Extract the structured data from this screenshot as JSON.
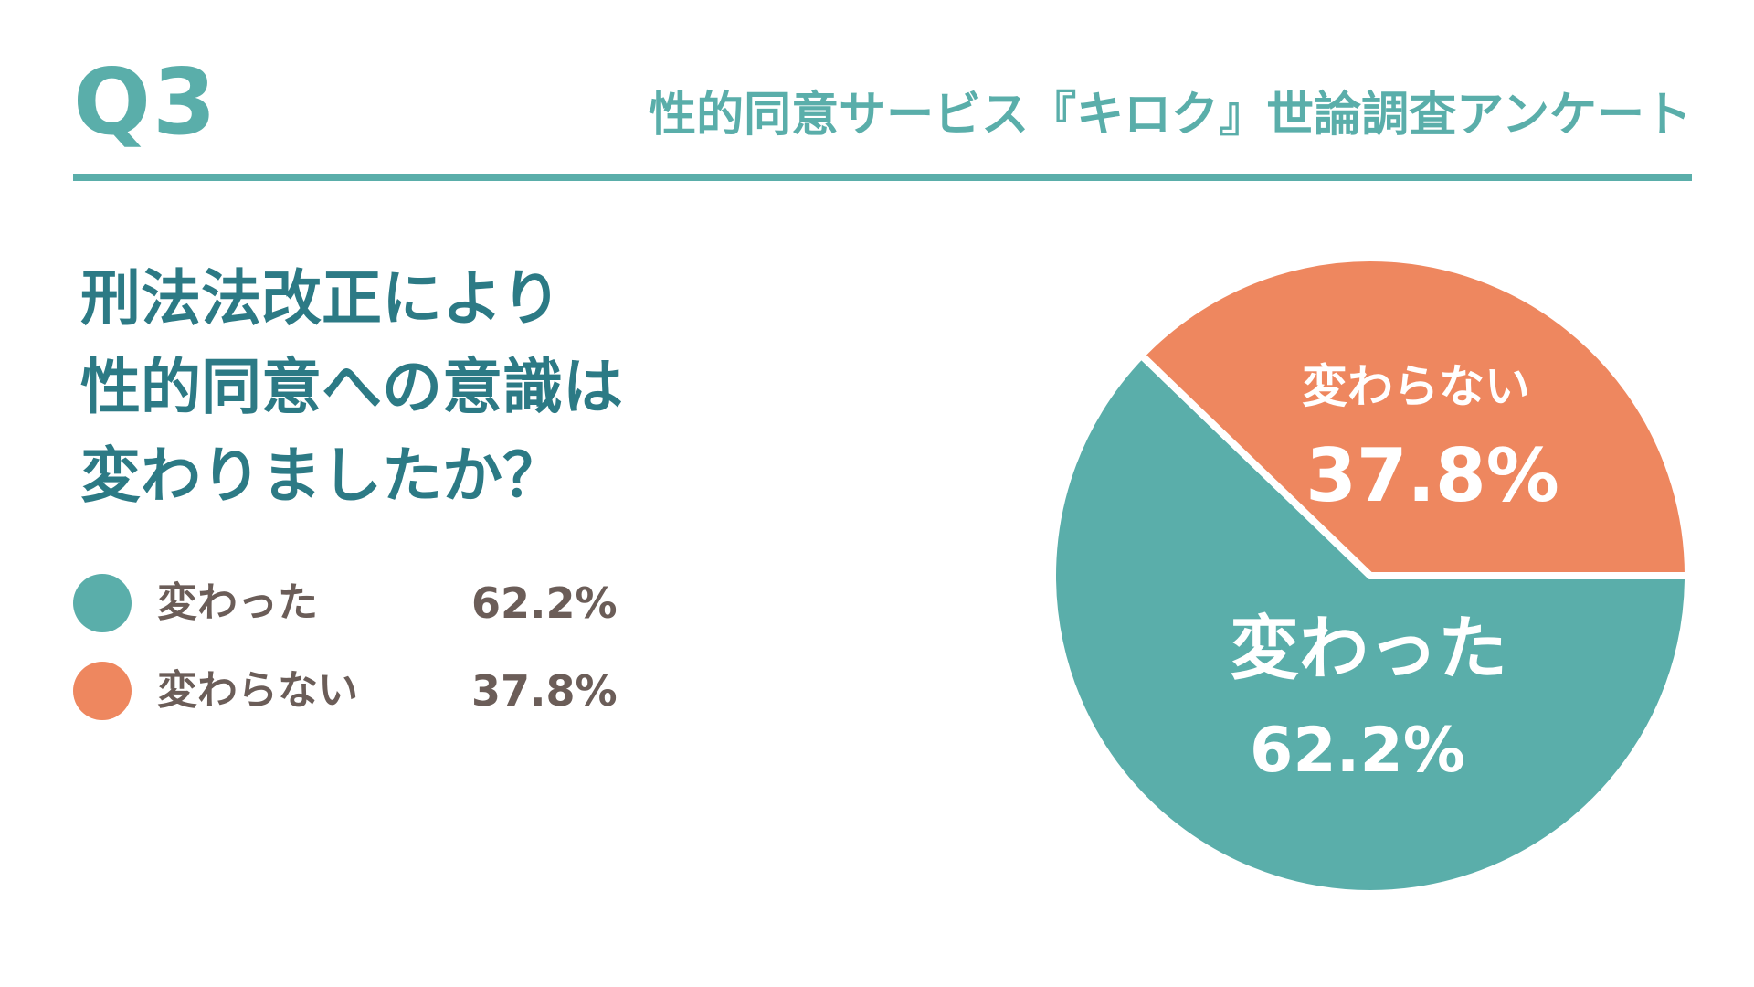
{
  "header": {
    "question_number": "Q3",
    "survey_title": "性的同意サービス『キロク』世論調査アンケート"
  },
  "question": {
    "lines": [
      "刑法法改正により",
      "性的同意への意識は",
      "変わりましたか？"
    ]
  },
  "colors": {
    "accent": "#5aaeaa",
    "question_text": "#2c7a85",
    "legend_text": "#6b5d58",
    "series_changed": "#5aaeaa",
    "series_unchanged": "#ee875f"
  },
  "chart_data": {
    "type": "pie",
    "title": "",
    "slices": [
      {
        "label": "変わった",
        "value": 62.2,
        "display": "62.2%",
        "color": "#5aaeaa"
      },
      {
        "label": "変わらない",
        "value": 37.8,
        "display": "37.8%",
        "color": "#ee875f"
      }
    ],
    "legend_position": "left"
  }
}
